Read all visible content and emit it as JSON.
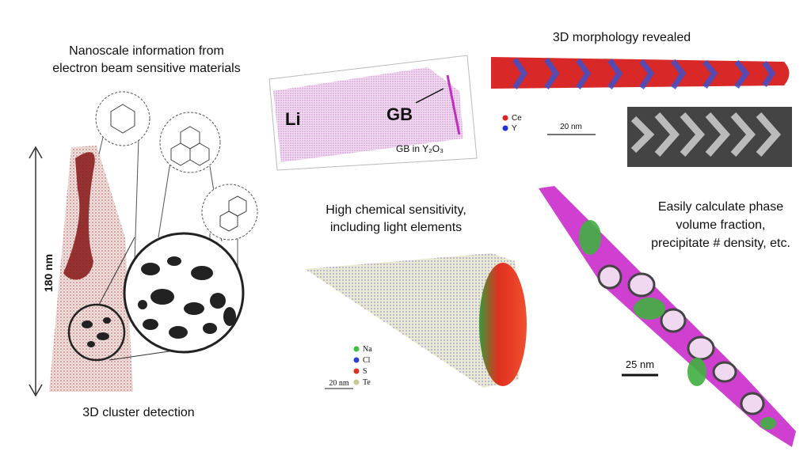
{
  "panels": {
    "clusters": {
      "title": [
        "Nanoscale information from",
        "electron beam sensitive materials"
      ],
      "scale": "180 nm",
      "caption": "3D cluster detection"
    },
    "grain_boundary": {
      "left_label": "Li",
      "right_label": "GB",
      "caption": "GB in Y₂O₃"
    },
    "morphology": {
      "title": "3D morphology revealed",
      "legend": [
        "Ce",
        "Y"
      ],
      "scale": "20 nm"
    },
    "chemical": {
      "title": [
        "High chemical sensitivity,",
        "including light elements"
      ],
      "legend": [
        "Na",
        "Cl",
        "S",
        "Te"
      ],
      "scale": "20 nm"
    },
    "phase": {
      "title": [
        "Easily calculate phase",
        "volume fraction,",
        "precipitate # density, etc."
      ],
      "scale": "25 nm"
    }
  }
}
